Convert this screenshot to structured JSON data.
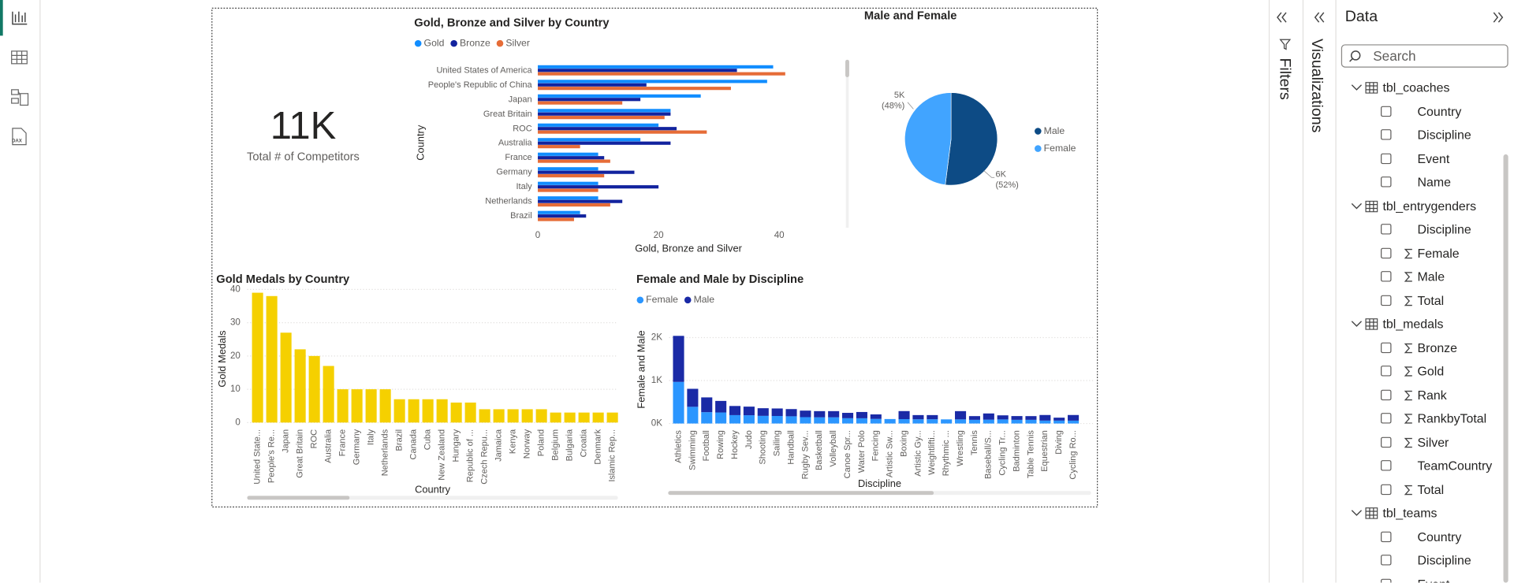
{
  "ui": {
    "rail": {
      "dax_icon": "DAX"
    },
    "panes": {
      "filters": "Filters",
      "visualizations": "Visualizations",
      "data": "Data"
    },
    "search_placeholder": "Search",
    "tables": [
      {
        "name": "tbl_coaches",
        "fields": [
          {
            "name": "Country",
            "sum": false
          },
          {
            "name": "Discipline",
            "sum": false
          },
          {
            "name": "Event",
            "sum": false
          },
          {
            "name": "Name",
            "sum": false
          }
        ]
      },
      {
        "name": "tbl_entrygenders",
        "fields": [
          {
            "name": "Discipline",
            "sum": false
          },
          {
            "name": "Female",
            "sum": true
          },
          {
            "name": "Male",
            "sum": true
          },
          {
            "name": "Total",
            "sum": true
          }
        ]
      },
      {
        "name": "tbl_medals",
        "fields": [
          {
            "name": "Bronze",
            "sum": true
          },
          {
            "name": "Gold",
            "sum": true
          },
          {
            "name": "Rank",
            "sum": true
          },
          {
            "name": "RankbyTotal",
            "sum": true
          },
          {
            "name": "Silver",
            "sum": true
          },
          {
            "name": "TeamCountry",
            "sum": false
          },
          {
            "name": "Total",
            "sum": true
          }
        ]
      },
      {
        "name": "tbl_teams",
        "fields": [
          {
            "name": "Country",
            "sum": false
          },
          {
            "name": "Discipline",
            "sum": false
          },
          {
            "name": "Event",
            "sum": false
          }
        ]
      }
    ]
  },
  "chart_data": [
    {
      "type": "card",
      "value": 11000,
      "value_label": "11K",
      "label": "Total # of Competitors"
    },
    {
      "type": "hbar",
      "title": "Gold, Bronze and Silver by Country",
      "categories": [
        "United States of America",
        "People's Republic of China",
        "Japan",
        "Great Britain",
        "ROC",
        "Australia",
        "France",
        "Germany",
        "Italy",
        "Netherlands",
        "Brazil"
      ],
      "series": [
        {
          "name": "Gold",
          "color": "#118dff",
          "values": [
            39,
            38,
            27,
            22,
            20,
            17,
            10,
            10,
            10,
            10,
            7
          ]
        },
        {
          "name": "Bronze",
          "color": "#12239e",
          "values": [
            33,
            18,
            17,
            22,
            23,
            22,
            11,
            16,
            20,
            14,
            8
          ]
        },
        {
          "name": "Silver",
          "color": "#e66c37",
          "values": [
            41,
            32,
            14,
            21,
            28,
            7,
            12,
            11,
            10,
            12,
            6
          ]
        }
      ],
      "x_label": "Gold, Bronze and Silver",
      "y_label": "Country",
      "xlim": [
        0,
        44
      ],
      "xticks": [
        0,
        20,
        40
      ]
    },
    {
      "type": "pie",
      "title": "Male and Female",
      "categories": [
        "Male",
        "Female"
      ],
      "values": [
        5720,
        5280
      ],
      "colors": [
        "#0d4b85",
        "#41a4ff"
      ],
      "value_labels": [
        "6K",
        "5K"
      ],
      "percent_labels": [
        "(52%)",
        "(48%)"
      ]
    },
    {
      "type": "column",
      "title": "Gold Medals by Country",
      "categories": [
        "United State...",
        "People's Re...",
        "Japan",
        "Great Britain",
        "ROC",
        "Australia",
        "France",
        "Germany",
        "Italy",
        "Netherlands",
        "Brazil",
        "Canada",
        "Cuba",
        "New Zealand",
        "Hungary",
        "Republic of ...",
        "Czech Repu...",
        "Jamaica",
        "Kenya",
        "Norway",
        "Poland",
        "Belgium",
        "Bulgaria",
        "Croatia",
        "Denmark",
        "Islamic Rep..."
      ],
      "values": [
        39,
        38,
        27,
        22,
        20,
        17,
        10,
        10,
        10,
        10,
        7,
        7,
        7,
        7,
        6,
        6,
        4,
        4,
        4,
        4,
        4,
        3,
        3,
        3,
        3,
        3
      ],
      "color": "#f5d000",
      "x_label": "Country",
      "y_label": "Gold Medals",
      "ylim": [
        0,
        42
      ],
      "yticks": [
        0,
        10,
        20,
        30,
        40
      ],
      "grid": true
    },
    {
      "type": "stacked_column",
      "title": "Female and Male by Discipline",
      "categories": [
        "Athletics",
        "Swimming",
        "Football",
        "Rowing",
        "Hockey",
        "Judo",
        "Shooting",
        "Sailing",
        "Handball",
        "Rugby Sev...",
        "Basketball",
        "Volleyball",
        "Canoe Spr...",
        "Water Polo",
        "Fencing",
        "Artistic Sw...",
        "Boxing",
        "Artistic Gy...",
        "Weightlifti...",
        "Rhythmic ...",
        "Wrestling",
        "Tennis",
        "Baseball/S...",
        "Cycling Tr...",
        "Badminton",
        "Table Tennis",
        "Equestrian",
        "Diving",
        "Cycling Ro..."
      ],
      "series": [
        {
          "name": "Female",
          "color": "#2b96ff",
          "values": [
            969,
            389,
            264,
            257,
            195,
            192,
            178,
            175,
            168,
            148,
            144,
            144,
            123,
            122,
            107,
            104,
            102,
            98,
            99,
            96,
            96,
            86,
            90,
            95,
            86,
            86,
            68,
            68,
            67
          ]
        },
        {
          "name": "Male",
          "color": "#1a2aa6",
          "values": [
            1072,
            419,
            344,
            269,
            213,
            201,
            178,
            175,
            168,
            152,
            144,
            144,
            125,
            146,
            105,
            0,
            187,
            98,
            97,
            0,
            192,
            86,
            144,
            95,
            87,
            86,
            130,
            68,
            131
          ]
        }
      ],
      "x_label": "Discipline",
      "y_label": "Female and Male",
      "ylim": [
        0,
        2150
      ],
      "yticks": [
        {
          "value": 0,
          "label": "0K"
        },
        {
          "value": 1000,
          "label": "1K"
        },
        {
          "value": 2000,
          "label": "2K"
        }
      ],
      "grid": true
    }
  ]
}
